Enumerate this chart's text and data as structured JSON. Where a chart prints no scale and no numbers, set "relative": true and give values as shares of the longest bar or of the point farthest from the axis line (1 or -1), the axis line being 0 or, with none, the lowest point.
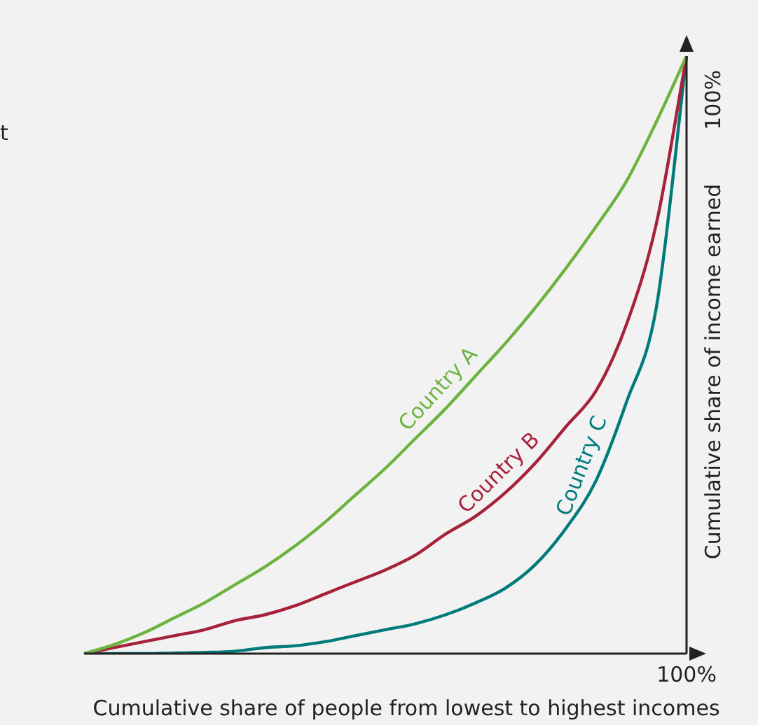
{
  "chart_data": {
    "type": "line",
    "relative": true,
    "xlabel": "Cumulative share of people from lowest to highest incomes",
    "ylabel": "Cumulative share of income earned",
    "annotations": [
      "100%",
      "100%",
      "t"
    ],
    "marker": "none",
    "legend": false,
    "categories": [
      null,
      null,
      null,
      null,
      null,
      null,
      null,
      null,
      null,
      null,
      null,
      null,
      null,
      null,
      null,
      null,
      null,
      null,
      null,
      null,
      null
    ],
    "series": [
      {
        "name": "Country A",
        "color": "#6db33f",
        "values": [
          0,
          0.015,
          0.035,
          0.06,
          0.085,
          0.115,
          0.145,
          0.18,
          0.22,
          0.265,
          0.31,
          0.36,
          0.41,
          0.465,
          0.52,
          0.58,
          0.645,
          0.715,
          0.79,
          0.89,
          1
        ]
      },
      {
        "name": "Country B",
        "color": "#a6213a",
        "values": [
          0,
          0.01,
          0.02,
          0.03,
          0.04,
          0.055,
          0.065,
          0.08,
          0.1,
          0.12,
          0.14,
          0.165,
          0.2,
          0.23,
          0.27,
          0.32,
          0.38,
          0.44,
          0.55,
          0.72,
          1
        ]
      },
      {
        "name": "Country C",
        "color": "#007b7a",
        "values": [
          0,
          0,
          0,
          0.001,
          0.002,
          0.004,
          0.01,
          0.013,
          0.02,
          0.03,
          0.04,
          0.05,
          0.065,
          0.085,
          0.11,
          0.15,
          0.21,
          0.29,
          0.42,
          0.58,
          1
        ]
      }
    ]
  }
}
